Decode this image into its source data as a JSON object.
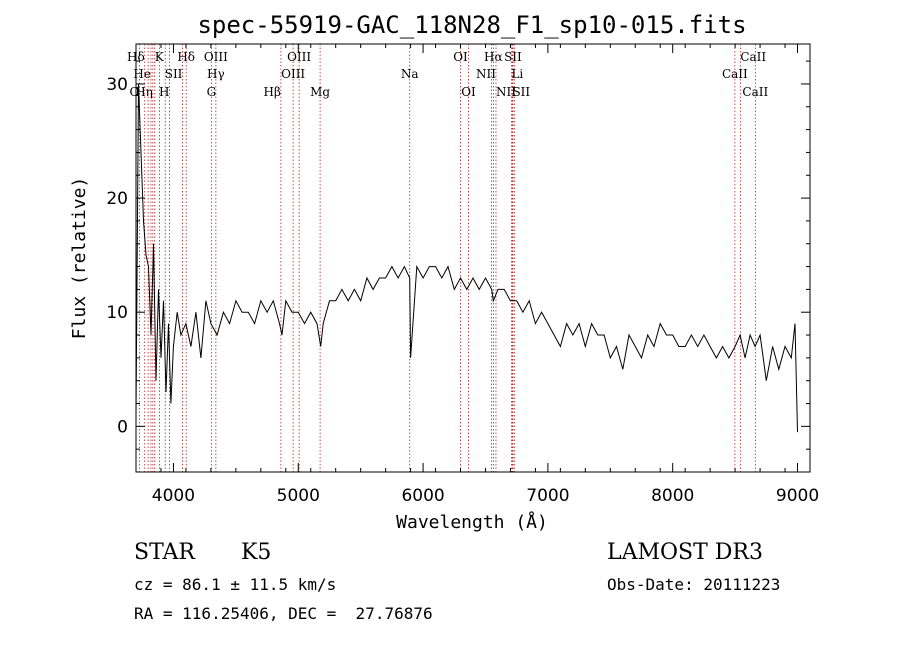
{
  "chart_data": {
    "type": "line",
    "title": "spec-55919-GAC_118N28_F1_sp10-015.fits",
    "xlabel": "Wavelength (Å)",
    "ylabel": "Flux (relative)",
    "xlim": [
      3700,
      9100
    ],
    "ylim": [
      -4,
      33.5
    ],
    "xticks": [
      4000,
      5000,
      6000,
      7000,
      8000,
      9000
    ],
    "yticks": [
      0,
      10,
      20,
      30
    ],
    "line_color": "#000000",
    "marker_color": "#b22222",
    "spectrum": {
      "x": [
        3700,
        3720,
        3740,
        3760,
        3780,
        3800,
        3820,
        3840,
        3860,
        3880,
        3900,
        3920,
        3940,
        3960,
        3980,
        4000,
        4030,
        4060,
        4100,
        4140,
        4180,
        4220,
        4260,
        4300,
        4350,
        4400,
        4450,
        4500,
        4550,
        4600,
        4650,
        4700,
        4750,
        4800,
        4850,
        4870,
        4900,
        4950,
        5000,
        5050,
        5100,
        5150,
        5180,
        5200,
        5250,
        5300,
        5350,
        5400,
        5450,
        5500,
        5550,
        5600,
        5650,
        5700,
        5750,
        5800,
        5850,
        5893,
        5900,
        5950,
        6000,
        6050,
        6100,
        6150,
        6200,
        6250,
        6300,
        6350,
        6400,
        6450,
        6500,
        6550,
        6563,
        6600,
        6650,
        6700,
        6750,
        6800,
        6850,
        6900,
        6950,
        7000,
        7050,
        7100,
        7150,
        7200,
        7250,
        7300,
        7350,
        7400,
        7450,
        7500,
        7550,
        7600,
        7650,
        7700,
        7750,
        7800,
        7850,
        7900,
        7950,
        8000,
        8050,
        8100,
        8150,
        8200,
        8250,
        8300,
        8350,
        8400,
        8450,
        8500,
        8540,
        8580,
        8620,
        8660,
        8700,
        8750,
        8800,
        8850,
        8900,
        8950,
        8980,
        9000
      ],
      "y": [
        1,
        30,
        24,
        18,
        15,
        14,
        8,
        16,
        4,
        12,
        6,
        11,
        3,
        9,
        2,
        7,
        10,
        8,
        9,
        7,
        10,
        6,
        11,
        9,
        8,
        10,
        9,
        11,
        10,
        10,
        9,
        11,
        10,
        11,
        9,
        8,
        11,
        10,
        10,
        9,
        10,
        9,
        7,
        9,
        11,
        11,
        12,
        11,
        12,
        11,
        13,
        12,
        13,
        13,
        14,
        13,
        14,
        13,
        6,
        14,
        13,
        14,
        14,
        13,
        14,
        12,
        13,
        12,
        13,
        12,
        13,
        12,
        11,
        12,
        12,
        11,
        11,
        10,
        11,
        9,
        10,
        9,
        8,
        7,
        9,
        8,
        9,
        7,
        9,
        8,
        8,
        6,
        7,
        5,
        8,
        7,
        6,
        8,
        7,
        9,
        8,
        8,
        7,
        7,
        8,
        7,
        8,
        7,
        6,
        7,
        6,
        7,
        8,
        6,
        8,
        7,
        8,
        4,
        7,
        5,
        7,
        6,
        9,
        -0.5
      ]
    },
    "line_markers": [
      {
        "label": "Hδ",
        "x": 3770,
        "row": 0,
        "align": "end"
      },
      {
        "label": "K",
        "x": 3850,
        "row": 0,
        "align": "start"
      },
      {
        "label": "Hδ",
        "x": 4102,
        "row": 0,
        "align": "middle"
      },
      {
        "label": "OIII",
        "x": 4340,
        "row": 0,
        "align": "middle"
      },
      {
        "label": "OIII",
        "x": 5007,
        "row": 0,
        "align": "middle"
      },
      {
        "label": "OI",
        "x": 6300,
        "row": 0,
        "align": "middle"
      },
      {
        "label": "Hα",
        "x": 6563,
        "row": 0,
        "align": "middle"
      },
      {
        "label": "SII",
        "x": 6720,
        "row": 0,
        "align": "middle"
      },
      {
        "label": "CaII",
        "x": 8542,
        "row": 0,
        "align": "start"
      },
      {
        "label": "He",
        "x": 3820,
        "row": 1,
        "align": "end"
      },
      {
        "label": "SII",
        "x": 4072,
        "row": 1,
        "align": "end"
      },
      {
        "label": "Hγ",
        "x": 4340,
        "row": 1,
        "align": "middle"
      },
      {
        "label": "OIII",
        "x": 4959,
        "row": 1,
        "align": "middle"
      },
      {
        "label": "Na",
        "x": 5893,
        "row": 1,
        "align": "middle"
      },
      {
        "label": "NII",
        "x": 6584,
        "row": 1,
        "align": "end"
      },
      {
        "label": "Li",
        "x": 6708,
        "row": 1,
        "align": "start"
      },
      {
        "label": "CaII",
        "x": 8498,
        "row": 1,
        "align": "middle"
      },
      {
        "label": "O",
        "x": 3727,
        "row": 2,
        "align": "end"
      },
      {
        "label": "Hη",
        "x": 3835,
        "row": 2,
        "align": "end"
      },
      {
        "label": "H",
        "x": 3968,
        "row": 2,
        "align": "end"
      },
      {
        "label": "G",
        "x": 4304,
        "row": 2,
        "align": "middle"
      },
      {
        "label": "Hβ",
        "x": 4861,
        "row": 2,
        "align": "end"
      },
      {
        "label": "Mg",
        "x": 5175,
        "row": 2,
        "align": "middle"
      },
      {
        "label": "OI",
        "x": 6364,
        "row": 2,
        "align": "middle"
      },
      {
        "label": "NII",
        "x": 6584,
        "row": 2,
        "align": "start"
      },
      {
        "label": "SII",
        "x": 6716,
        "row": 2,
        "align": "start"
      },
      {
        "label": "CaII",
        "x": 8662,
        "row": 2,
        "align": "middle"
      }
    ],
    "extra_lines": [
      3797,
      3889,
      3934,
      4861,
      4959,
      6548,
      6731,
      8498,
      8542
    ]
  },
  "info": {
    "class": "STAR",
    "subclass": "K5",
    "survey": "LAMOST DR3",
    "cz": "cz = 86.1 ± 11.5 km/s",
    "obs_date": "Obs-Date: 20111223",
    "coords": "RA = 116.25406, DEC =  27.76876"
  }
}
